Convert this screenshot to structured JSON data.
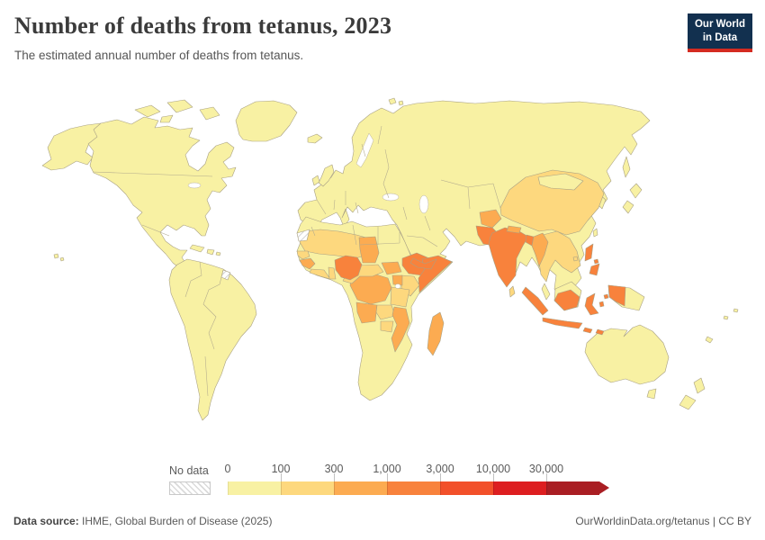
{
  "header": {
    "title": "Number of deaths from tetanus, 2023",
    "subtitle": "The estimated annual number of deaths from tetanus.",
    "logo_line1": "Our World",
    "logo_line2": "in Data"
  },
  "footer": {
    "datasource_label": "Data source:",
    "datasource_value": " IHME, Global Burden of Disease (2025)",
    "link": "OurWorldinData.org/tetanus | CC BY"
  },
  "legend": {
    "no_data_label": "No data",
    "ticks": [
      "0",
      "100",
      "300",
      "1,000",
      "3,000",
      "10,000",
      "30,000"
    ]
  },
  "colors": {
    "logo_bg": "#12304f",
    "logo_accent": "#d42b21",
    "country_border": "#a9a184",
    "title_color": "#3b3b3b"
  },
  "chart_data": {
    "type": "heatmap",
    "subtype": "choropleth_world_map",
    "title": "Number of deaths from tetanus, 2023",
    "unit": "deaths",
    "year": 2023,
    "legend_position": "bottom",
    "no_data_label": "No data",
    "bins": [
      {
        "label": "0-100",
        "color": "#f8f1a3"
      },
      {
        "label": "100-300",
        "color": "#fdd87e"
      },
      {
        "label": "300-1,000",
        "color": "#fcab51"
      },
      {
        "label": "1,000-3,000",
        "color": "#f8823c"
      },
      {
        "label": "3,000-10,000",
        "color": "#f2502a"
      },
      {
        "label": "10,000-30,000",
        "color": "#dd1e20"
      },
      {
        "label": "30,000+",
        "color": "#a91e23"
      }
    ],
    "regions": {
      "north-america": 0,
      "alaska": 0,
      "arctic-islands": 0,
      "greenland": 0,
      "iceland": 0,
      "caribbean": 0,
      "hawaii": 0,
      "south-america": 0,
      "eurasia": 0,
      "uk": 0,
      "ireland": 0,
      "japan": 0,
      "korea": 0,
      "sakhalin": 0,
      "svalbard": 0,
      "mongolia": 0,
      "taiwan": 0,
      "malaysia": 0,
      "papua-new-guinea": 0,
      "australia": 0,
      "new-zealand": 0,
      "pacific-islands": 0,
      "africa": 0,
      "sahel": 1,
      "senegal": 1,
      "ghana-cote-divoire": 1,
      "togo-benin": 1,
      "cameroon-car": 1,
      "kenya": 1,
      "tanzania": 1,
      "zambia": 1,
      "zimbabwe": 1,
      "sri-lanka": 1,
      "china": 1,
      "indochina": 1,
      "hainan": 1,
      "guinea": 2,
      "chad": 2,
      "south-sudan": 2,
      "drc": 2,
      "uganda": 2,
      "angola": 2,
      "mozambique": 2,
      "madagascar": 2,
      "afghanistan": 2,
      "nepal": 2,
      "myanmar": 2,
      "nigeria": 3,
      "ethiopia": 3,
      "somalia": 3,
      "yemen": 3,
      "pakistan": 3,
      "india": 3,
      "bangladesh": 3,
      "indonesia": 3,
      "philippines": 3,
      "western-sahara": "no_data",
      "french-guiana": "no_data"
    }
  }
}
